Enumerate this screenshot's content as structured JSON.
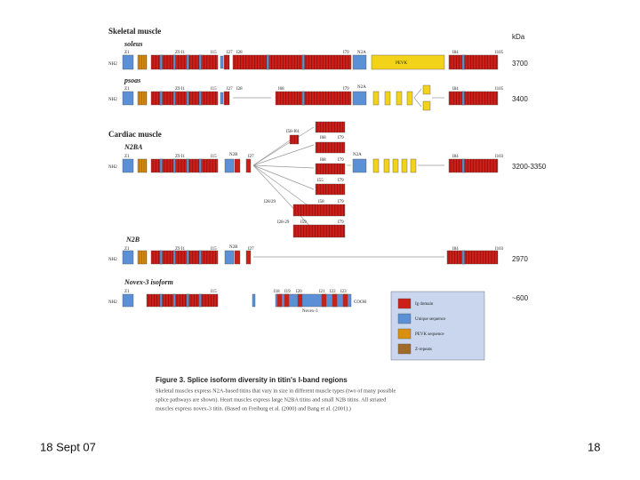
{
  "sections": [
    "Skeletal muscle",
    "Cardiac muscle"
  ],
  "unit": "kDa",
  "rows": [
    {
      "name": "soleus",
      "nterm": "NH2",
      "labels": [
        "Z1",
        "Z9 I1",
        "I15",
        "I27",
        "I28",
        "I79",
        "N2A",
        "PEVK",
        "I84",
        "I105"
      ],
      "size": "3700"
    },
    {
      "name": "psoas",
      "nterm": "NH2",
      "labels": [
        "Z1",
        "Z9 I1",
        "I15",
        "I27",
        "I28",
        "I68",
        "I79",
        "N2A",
        "I84",
        "I105"
      ],
      "size": "3400"
    },
    {
      "name": "N2BA",
      "nterm": "NH2",
      "labels": [
        "Z1",
        "Z9 I1",
        "I15",
        "N2B",
        "I27",
        "I58-I61",
        "I68",
        "I79",
        "I68",
        "I79",
        "I55",
        "I79",
        "I28/29",
        "I58",
        "I79",
        "I28-29",
        "I59",
        "I79",
        "N2A",
        "I84",
        "I103"
      ],
      "size": "3200-3350"
    },
    {
      "name": "N2B",
      "nterm": "NH2",
      "labels": [
        "Z1",
        "Z9 I1",
        "I15",
        "N2B",
        "I27",
        "I84",
        "I103"
      ],
      "size": "2970"
    },
    {
      "name": "Novex-3 isoform",
      "nterm": "NH2",
      "labels": [
        "Z1",
        "I15",
        "I18",
        "I19",
        "I20",
        "I21",
        "I22",
        "I23",
        "Novex-3",
        "COOH"
      ],
      "size": "~600"
    }
  ],
  "legend": [
    "Ig domain",
    "Unique sequence",
    "PEVK sequence",
    "Z-repeats"
  ],
  "caption": {
    "title": "Figure 3. Splice isoform diversity in titin's I-band regions",
    "lines": [
      "Skeletal muscles express N2A-based titins that vary in size in different muscle types (two of many possible",
      "splice pathways are shown). Heart muscles express large N2BA titins and small N2B titins. All striated",
      "muscles express novex-3 titin. (Based on Freiburg et al. (2000) and Bang et al. (2001).)"
    ]
  },
  "footer": {
    "date": "18 Sept 07",
    "page": "18"
  }
}
